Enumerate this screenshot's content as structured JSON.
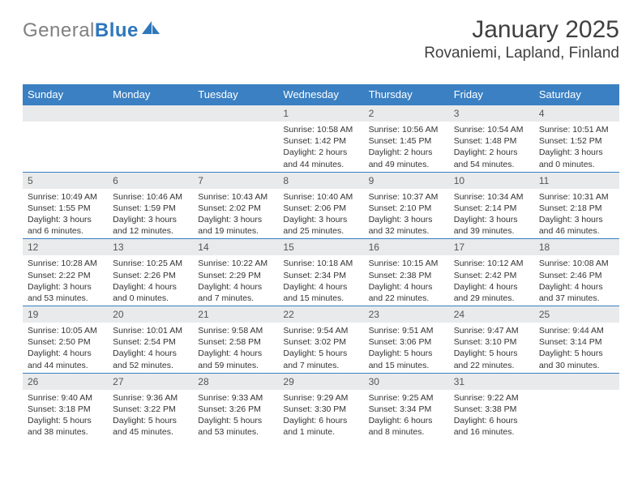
{
  "brand": {
    "part1": "General",
    "part2": "Blue"
  },
  "title": "January 2025",
  "location": "Rovaniemi, Lapland, Finland",
  "colors": {
    "header_bg": "#3a80c3",
    "header_text": "#ffffff",
    "daynum_bg": "#e9eaeb",
    "rule": "#3a80c3",
    "logo_grey": "#808080",
    "logo_blue": "#2f77bb"
  },
  "weekdays": [
    "Sunday",
    "Monday",
    "Tuesday",
    "Wednesday",
    "Thursday",
    "Friday",
    "Saturday"
  ],
  "weeks": [
    [
      {
        "n": "",
        "sr": "",
        "ss": "",
        "dl": ""
      },
      {
        "n": "",
        "sr": "",
        "ss": "",
        "dl": ""
      },
      {
        "n": "",
        "sr": "",
        "ss": "",
        "dl": ""
      },
      {
        "n": "1",
        "sr": "Sunrise: 10:58 AM",
        "ss": "Sunset: 1:42 PM",
        "dl": "Daylight: 2 hours and 44 minutes."
      },
      {
        "n": "2",
        "sr": "Sunrise: 10:56 AM",
        "ss": "Sunset: 1:45 PM",
        "dl": "Daylight: 2 hours and 49 minutes."
      },
      {
        "n": "3",
        "sr": "Sunrise: 10:54 AM",
        "ss": "Sunset: 1:48 PM",
        "dl": "Daylight: 2 hours and 54 minutes."
      },
      {
        "n": "4",
        "sr": "Sunrise: 10:51 AM",
        "ss": "Sunset: 1:52 PM",
        "dl": "Daylight: 3 hours and 0 minutes."
      }
    ],
    [
      {
        "n": "5",
        "sr": "Sunrise: 10:49 AM",
        "ss": "Sunset: 1:55 PM",
        "dl": "Daylight: 3 hours and 6 minutes."
      },
      {
        "n": "6",
        "sr": "Sunrise: 10:46 AM",
        "ss": "Sunset: 1:59 PM",
        "dl": "Daylight: 3 hours and 12 minutes."
      },
      {
        "n": "7",
        "sr": "Sunrise: 10:43 AM",
        "ss": "Sunset: 2:02 PM",
        "dl": "Daylight: 3 hours and 19 minutes."
      },
      {
        "n": "8",
        "sr": "Sunrise: 10:40 AM",
        "ss": "Sunset: 2:06 PM",
        "dl": "Daylight: 3 hours and 25 minutes."
      },
      {
        "n": "9",
        "sr": "Sunrise: 10:37 AM",
        "ss": "Sunset: 2:10 PM",
        "dl": "Daylight: 3 hours and 32 minutes."
      },
      {
        "n": "10",
        "sr": "Sunrise: 10:34 AM",
        "ss": "Sunset: 2:14 PM",
        "dl": "Daylight: 3 hours and 39 minutes."
      },
      {
        "n": "11",
        "sr": "Sunrise: 10:31 AM",
        "ss": "Sunset: 2:18 PM",
        "dl": "Daylight: 3 hours and 46 minutes."
      }
    ],
    [
      {
        "n": "12",
        "sr": "Sunrise: 10:28 AM",
        "ss": "Sunset: 2:22 PM",
        "dl": "Daylight: 3 hours and 53 minutes."
      },
      {
        "n": "13",
        "sr": "Sunrise: 10:25 AM",
        "ss": "Sunset: 2:26 PM",
        "dl": "Daylight: 4 hours and 0 minutes."
      },
      {
        "n": "14",
        "sr": "Sunrise: 10:22 AM",
        "ss": "Sunset: 2:29 PM",
        "dl": "Daylight: 4 hours and 7 minutes."
      },
      {
        "n": "15",
        "sr": "Sunrise: 10:18 AM",
        "ss": "Sunset: 2:34 PM",
        "dl": "Daylight: 4 hours and 15 minutes."
      },
      {
        "n": "16",
        "sr": "Sunrise: 10:15 AM",
        "ss": "Sunset: 2:38 PM",
        "dl": "Daylight: 4 hours and 22 minutes."
      },
      {
        "n": "17",
        "sr": "Sunrise: 10:12 AM",
        "ss": "Sunset: 2:42 PM",
        "dl": "Daylight: 4 hours and 29 minutes."
      },
      {
        "n": "18",
        "sr": "Sunrise: 10:08 AM",
        "ss": "Sunset: 2:46 PM",
        "dl": "Daylight: 4 hours and 37 minutes."
      }
    ],
    [
      {
        "n": "19",
        "sr": "Sunrise: 10:05 AM",
        "ss": "Sunset: 2:50 PM",
        "dl": "Daylight: 4 hours and 44 minutes."
      },
      {
        "n": "20",
        "sr": "Sunrise: 10:01 AM",
        "ss": "Sunset: 2:54 PM",
        "dl": "Daylight: 4 hours and 52 minutes."
      },
      {
        "n": "21",
        "sr": "Sunrise: 9:58 AM",
        "ss": "Sunset: 2:58 PM",
        "dl": "Daylight: 4 hours and 59 minutes."
      },
      {
        "n": "22",
        "sr": "Sunrise: 9:54 AM",
        "ss": "Sunset: 3:02 PM",
        "dl": "Daylight: 5 hours and 7 minutes."
      },
      {
        "n": "23",
        "sr": "Sunrise: 9:51 AM",
        "ss": "Sunset: 3:06 PM",
        "dl": "Daylight: 5 hours and 15 minutes."
      },
      {
        "n": "24",
        "sr": "Sunrise: 9:47 AM",
        "ss": "Sunset: 3:10 PM",
        "dl": "Daylight: 5 hours and 22 minutes."
      },
      {
        "n": "25",
        "sr": "Sunrise: 9:44 AM",
        "ss": "Sunset: 3:14 PM",
        "dl": "Daylight: 5 hours and 30 minutes."
      }
    ],
    [
      {
        "n": "26",
        "sr": "Sunrise: 9:40 AM",
        "ss": "Sunset: 3:18 PM",
        "dl": "Daylight: 5 hours and 38 minutes."
      },
      {
        "n": "27",
        "sr": "Sunrise: 9:36 AM",
        "ss": "Sunset: 3:22 PM",
        "dl": "Daylight: 5 hours and 45 minutes."
      },
      {
        "n": "28",
        "sr": "Sunrise: 9:33 AM",
        "ss": "Sunset: 3:26 PM",
        "dl": "Daylight: 5 hours and 53 minutes."
      },
      {
        "n": "29",
        "sr": "Sunrise: 9:29 AM",
        "ss": "Sunset: 3:30 PM",
        "dl": "Daylight: 6 hours and 1 minute."
      },
      {
        "n": "30",
        "sr": "Sunrise: 9:25 AM",
        "ss": "Sunset: 3:34 PM",
        "dl": "Daylight: 6 hours and 8 minutes."
      },
      {
        "n": "31",
        "sr": "Sunrise: 9:22 AM",
        "ss": "Sunset: 3:38 PM",
        "dl": "Daylight: 6 hours and 16 minutes."
      },
      {
        "n": "",
        "sr": "",
        "ss": "",
        "dl": ""
      }
    ]
  ]
}
